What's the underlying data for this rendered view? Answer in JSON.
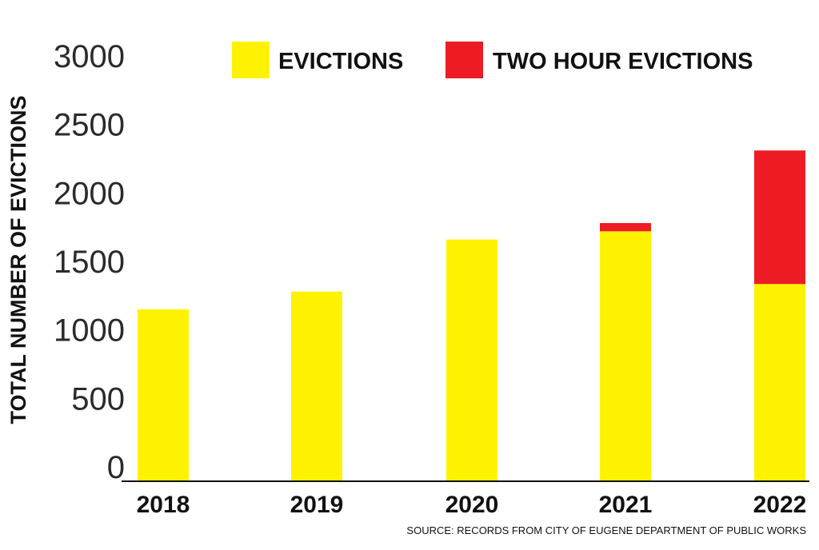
{
  "chart_data": {
    "type": "bar",
    "stacked": true,
    "title": "",
    "xlabel": "",
    "ylabel": "TOTAL NUMBER OF EVICTIONS",
    "categories": [
      "2018",
      "2019",
      "2020",
      "2021",
      "2022"
    ],
    "series": [
      {
        "name": "EVICTIONS",
        "color": "#fff200",
        "values": [
          1255,
          1385,
          1765,
          1825,
          1440
        ]
      },
      {
        "name": "TWO HOUR EVICTIONS",
        "color": "#ed1c24",
        "values": [
          0,
          0,
          0,
          60,
          975
        ]
      }
    ],
    "ylim": [
      0,
      3000
    ],
    "yticks": [
      0,
      500,
      1000,
      1500,
      2000,
      2500,
      3000
    ],
    "grid": false,
    "legend_position": "top",
    "source": "SOURCE: RECORDS FROM CITY OF EUGENE DEPARTMENT OF PUBLIC WORKS"
  }
}
